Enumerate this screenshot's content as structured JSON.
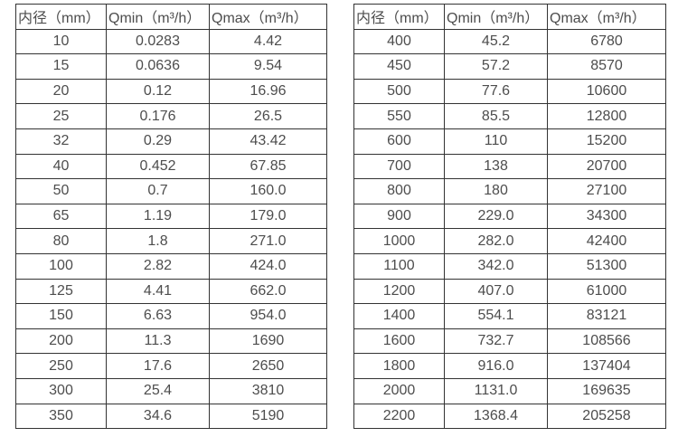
{
  "colors": {
    "text": "#4d4d4d",
    "border": "#333333",
    "background": "#ffffff"
  },
  "tables": [
    {
      "headers": [
        "内径（mm）",
        "Qmin（m³/h）",
        "Qmax（m³/h）"
      ],
      "rows": [
        [
          "10",
          "0.0283",
          "4.42"
        ],
        [
          "15",
          "0.0636",
          "9.54"
        ],
        [
          "20",
          "0.12",
          "16.96"
        ],
        [
          "25",
          "0.176",
          "26.5"
        ],
        [
          "32",
          "0.29",
          "43.42"
        ],
        [
          "40",
          "0.452",
          "67.85"
        ],
        [
          "50",
          "0.7",
          "160.0"
        ],
        [
          "65",
          "1.19",
          "179.0"
        ],
        [
          "80",
          "1.8",
          "271.0"
        ],
        [
          "100",
          "2.82",
          "424.0"
        ],
        [
          "125",
          "4.41",
          "662.0"
        ],
        [
          "150",
          "6.63",
          "954.0"
        ],
        [
          "200",
          "11.3",
          "1690"
        ],
        [
          "250",
          "17.6",
          "2650"
        ],
        [
          "300",
          "25.4",
          "3810"
        ],
        [
          "350",
          "34.6",
          "5190"
        ]
      ]
    },
    {
      "headers": [
        "内径（mm）",
        "Qmin（m³/h）",
        "Qmax（m³/h）"
      ],
      "rows": [
        [
          "400",
          "45.2",
          "6780"
        ],
        [
          "450",
          "57.2",
          "8570"
        ],
        [
          "500",
          "77.6",
          "10600"
        ],
        [
          "550",
          "85.5",
          "12800"
        ],
        [
          "600",
          "110",
          "15200"
        ],
        [
          "700",
          "138",
          "20700"
        ],
        [
          "800",
          "180",
          "27100"
        ],
        [
          "900",
          "229.0",
          "34300"
        ],
        [
          "1000",
          "282.0",
          "42400"
        ],
        [
          "1100",
          "342.0",
          "51300"
        ],
        [
          "1200",
          "407.0",
          "61000"
        ],
        [
          "1400",
          "554.1",
          "83121"
        ],
        [
          "1600",
          "732.7",
          "108566"
        ],
        [
          "1800",
          "916.0",
          "137404"
        ],
        [
          "2000",
          "1131.0",
          "169635"
        ],
        [
          "2200",
          "1368.4",
          "205258"
        ]
      ]
    }
  ]
}
